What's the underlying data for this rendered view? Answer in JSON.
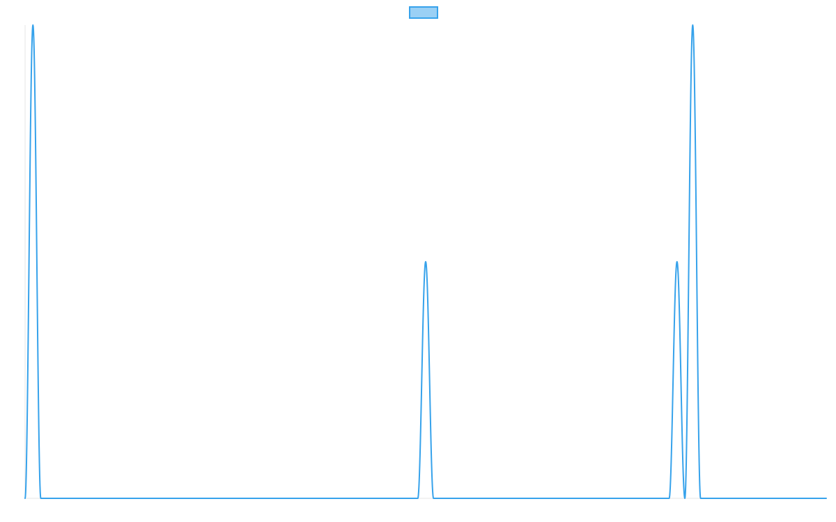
{
  "chart_data": {
    "type": "line",
    "title": "",
    "xlabel": "",
    "ylabel": "",
    "ylim": [
      0,
      1
    ],
    "grid": false,
    "legend": {
      "placement": "top-center",
      "entries": [
        {
          "name": "",
          "swatch_fill": "#9ad0f5",
          "swatch_stroke": "#36a2eb"
        }
      ]
    },
    "colors": {
      "line": "#36a2eb",
      "axis": "#e6e6e6",
      "background": "#ffffff"
    },
    "x": [
      0,
      0.5,
      1,
      2,
      25,
      25.5,
      26,
      27,
      41,
      41.5,
      42,
      42.5,
      43,
      43.5,
      44,
      51
    ],
    "series": [
      {
        "values": [
          0,
          1,
          0,
          0,
          0,
          0.5,
          0,
          0,
          0,
          0.5,
          0,
          1,
          0,
          0,
          0,
          0
        ]
      }
    ]
  }
}
